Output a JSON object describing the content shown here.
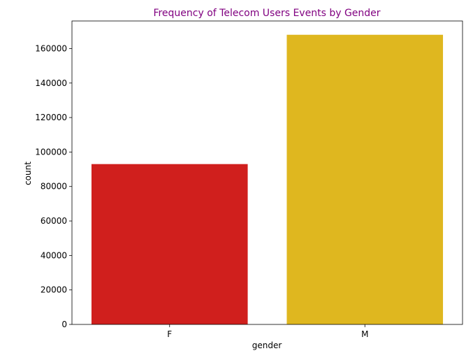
{
  "chart_data": {
    "type": "bar",
    "title": "Frequency of Telecom Users Events by Gender",
    "xlabel": "gender",
    "ylabel": "count",
    "categories": [
      "F",
      "M"
    ],
    "values": [
      93000,
      168000
    ],
    "ylim": [
      0,
      176000
    ],
    "yticks": [
      0,
      20000,
      40000,
      60000,
      80000,
      100000,
      120000,
      140000,
      160000
    ],
    "ytick_labels": [
      "0",
      "20000",
      "40000",
      "60000",
      "80000",
      "100000",
      "120000",
      "140000",
      "160000"
    ],
    "grid": false,
    "bar_colors": [
      "#d01f1d",
      "#dfb71f"
    ],
    "title_color": "#800080"
  }
}
